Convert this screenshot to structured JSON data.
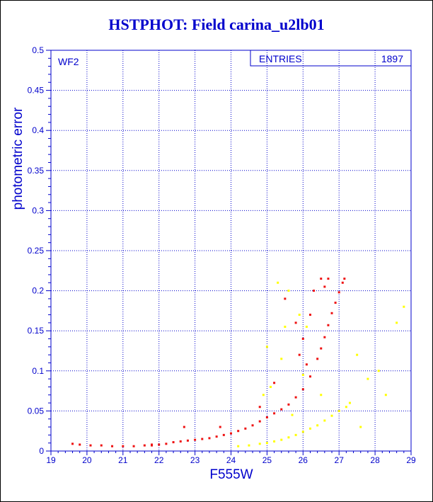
{
  "page": {
    "title": "HSTPHOT: Field carina_u2lb01"
  },
  "colors": {
    "axis": "#0000cc",
    "grid": "#0000cc",
    "series_red": "#ee1111",
    "series_yellow": "#ffff00",
    "background": "#ffffff"
  },
  "chart_data": {
    "type": "scatter",
    "title": "HSTPHOT: Field carina_u2lb01",
    "xlabel": "F555W",
    "ylabel": "photometric error",
    "xlim": [
      19,
      29
    ],
    "ylim": [
      0,
      0.5
    ],
    "x_ticks": [
      "19",
      "20",
      "21",
      "22",
      "23",
      "24",
      "25",
      "26",
      "27",
      "28",
      "29"
    ],
    "y_ticks": [
      "0",
      "0.05",
      "0.1",
      "0.15",
      "0.2",
      "0.25",
      "0.3",
      "0.35",
      "0.4",
      "0.45",
      "0.5"
    ],
    "grid": true,
    "panel_label": "WF2",
    "stats_box": {
      "label": "ENTRIES",
      "value": "1897"
    },
    "series": [
      {
        "color": "red",
        "points": [
          [
            19.6,
            0.009
          ],
          [
            19.8,
            0.008
          ],
          [
            20.1,
            0.007
          ],
          [
            20.4,
            0.007
          ],
          [
            20.7,
            0.006
          ],
          [
            21.0,
            0.006
          ],
          [
            21.3,
            0.006
          ],
          [
            21.6,
            0.007
          ],
          [
            21.8,
            0.007
          ],
          [
            22.0,
            0.008
          ],
          [
            22.2,
            0.009
          ],
          [
            22.4,
            0.011
          ],
          [
            22.6,
            0.012
          ],
          [
            22.8,
            0.013
          ],
          [
            23.0,
            0.014
          ],
          [
            23.2,
            0.015
          ],
          [
            23.4,
            0.016
          ],
          [
            23.6,
            0.018
          ],
          [
            23.8,
            0.02
          ],
          [
            24.0,
            0.022
          ],
          [
            24.2,
            0.025
          ],
          [
            24.4,
            0.028
          ],
          [
            24.6,
            0.032
          ],
          [
            24.8,
            0.037
          ],
          [
            25.0,
            0.042
          ],
          [
            25.2,
            0.047
          ],
          [
            25.4,
            0.052
          ],
          [
            25.6,
            0.058
          ],
          [
            25.8,
            0.067
          ],
          [
            26.0,
            0.077
          ],
          [
            26.2,
            0.093
          ],
          [
            26.4,
            0.115
          ],
          [
            26.5,
            0.128
          ],
          [
            26.6,
            0.142
          ],
          [
            26.7,
            0.157
          ],
          [
            26.8,
            0.172
          ],
          [
            26.9,
            0.185
          ],
          [
            27.0,
            0.198
          ],
          [
            27.1,
            0.21
          ],
          [
            27.15,
            0.215
          ],
          [
            25.5,
            0.19
          ],
          [
            25.8,
            0.16
          ],
          [
            26.0,
            0.14
          ],
          [
            26.2,
            0.17
          ],
          [
            26.3,
            0.2
          ],
          [
            26.5,
            0.215
          ],
          [
            26.6,
            0.205
          ],
          [
            26.7,
            0.215
          ],
          [
            25.9,
            0.12
          ],
          [
            26.1,
            0.108
          ],
          [
            23.7,
            0.03
          ],
          [
            24.8,
            0.055
          ],
          [
            25.2,
            0.085
          ],
          [
            22.7,
            0.03
          ],
          [
            21.8,
            0.008
          ]
        ]
      },
      {
        "color": "yellow",
        "points": [
          [
            24.2,
            0.006
          ],
          [
            24.5,
            0.007
          ],
          [
            24.8,
            0.009
          ],
          [
            25.0,
            0.01
          ],
          [
            25.2,
            0.012
          ],
          [
            25.4,
            0.014
          ],
          [
            25.6,
            0.017
          ],
          [
            25.8,
            0.02
          ],
          [
            26.0,
            0.024
          ],
          [
            26.2,
            0.028
          ],
          [
            26.4,
            0.032
          ],
          [
            26.6,
            0.038
          ],
          [
            26.8,
            0.044
          ],
          [
            27.0,
            0.05
          ],
          [
            27.2,
            0.055
          ],
          [
            25.3,
            0.21
          ],
          [
            25.6,
            0.2
          ],
          [
            25.9,
            0.17
          ],
          [
            26.1,
            0.155
          ],
          [
            25.0,
            0.13
          ],
          [
            25.4,
            0.115
          ],
          [
            25.1,
            0.08
          ],
          [
            24.9,
            0.07
          ],
          [
            27.5,
            0.12
          ],
          [
            27.8,
            0.09
          ],
          [
            28.1,
            0.1
          ],
          [
            28.3,
            0.07
          ],
          [
            28.6,
            0.16
          ],
          [
            28.8,
            0.18
          ],
          [
            27.3,
            0.06
          ],
          [
            26.5,
            0.07
          ],
          [
            25.7,
            0.045
          ],
          [
            27.6,
            0.03
          ],
          [
            25.5,
            0.155
          ],
          [
            26.0,
            0.095
          ]
        ]
      }
    ]
  }
}
